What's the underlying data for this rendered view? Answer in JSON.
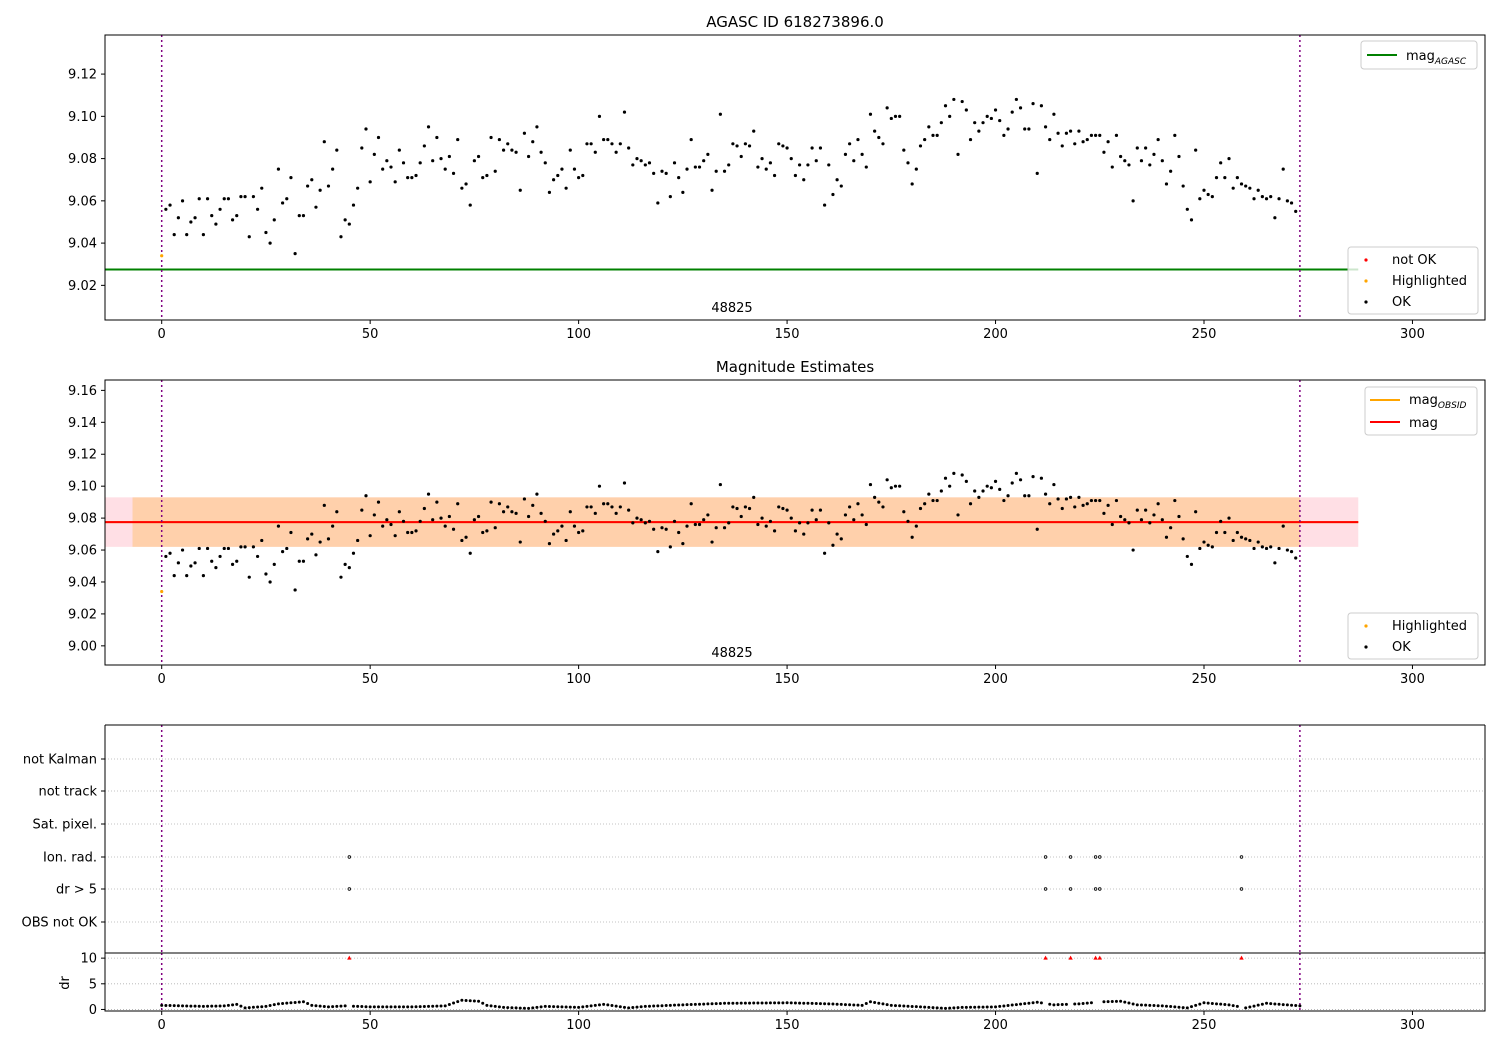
{
  "chart_data": [
    {
      "type": "scatter",
      "title": "AGASC ID 618273896.0",
      "xlim": [
        -13.6,
        317.4
      ],
      "ylim": [
        9.0036,
        9.1385
      ],
      "xticks": [
        0,
        50,
        100,
        150,
        200,
        250,
        300
      ],
      "yticks": [
        9.02,
        9.04,
        9.06,
        9.08,
        9.1,
        9.12
      ],
      "obsid_label": "48825",
      "vlines": [
        0,
        273
      ],
      "hlines": [
        {
          "name": "mag_AGASC",
          "y": 9.0275,
          "x_range": [
            -13.6,
            287
          ],
          "color": "#008000"
        }
      ],
      "legend_top": [
        {
          "label": "mag",
          "sub": "AGASC",
          "color": "#008000",
          "kind": "line"
        }
      ],
      "legend_bottom": [
        {
          "label": "not OK",
          "color": "#ff0000",
          "kind": "dot"
        },
        {
          "label": "Highlighted",
          "color": "#ffa500",
          "kind": "dot"
        },
        {
          "label": "OK",
          "color": "#000000",
          "kind": "dot"
        }
      ],
      "highlighted_points": [
        {
          "x": 0,
          "y": 9.034
        }
      ],
      "series": "shared_mag_series"
    },
    {
      "type": "scatter",
      "title": "Magnitude Estimates",
      "xlim": [
        -13.6,
        317.4
      ],
      "ylim": [
        8.988,
        9.1665
      ],
      "xticks": [
        0,
        50,
        100,
        150,
        200,
        250,
        300
      ],
      "yticks": [
        9.0,
        9.02,
        9.04,
        9.06,
        9.08,
        9.1,
        9.12,
        9.14,
        9.16
      ],
      "obsid_label": "48825",
      "vlines": [
        0,
        273
      ],
      "hlines": [
        {
          "name": "mag_OBSID",
          "y": 9.0775,
          "x_range": [
            -13.6,
            287
          ],
          "color": "#ffa500"
        },
        {
          "name": "mag",
          "y": 9.0775,
          "x_range": [
            -13.6,
            287
          ],
          "color": "#ff0000"
        }
      ],
      "bands": [
        {
          "y": [
            9.062,
            9.093
          ],
          "x_range": [
            -13.6,
            287
          ],
          "color": "#ffc0cb",
          "opacity": 0.5
        },
        {
          "y": [
            9.062,
            9.093
          ],
          "x_range": [
            -7,
            273
          ],
          "color": "#ffa500",
          "opacity": 0.25
        }
      ],
      "legend_top": [
        {
          "label": "mag",
          "sub": "OBSID",
          "color": "#ffa500",
          "kind": "line"
        },
        {
          "label": "mag",
          "sub": "",
          "color": "#ff0000",
          "kind": "line"
        }
      ],
      "legend_bottom": [
        {
          "label": "Highlighted",
          "color": "#ffa500",
          "kind": "dot"
        },
        {
          "label": "OK",
          "color": "#000000",
          "kind": "dot"
        }
      ],
      "highlighted_points": [
        {
          "x": 0,
          "y": 9.034
        }
      ],
      "series": "shared_mag_series"
    },
    {
      "type": "scatter",
      "title": "",
      "categories": [
        "not Kalman",
        "not track",
        "Sat. pixel.",
        "Ion. rad.",
        "dr > 5",
        "OBS not OK"
      ],
      "flag_points": {
        "Ion. rad.": [
          45,
          212,
          218,
          224,
          225,
          259
        ],
        "dr > 5": [
          45,
          212,
          218,
          224,
          225,
          259
        ]
      },
      "vlines": [
        0,
        273
      ]
    },
    {
      "type": "scatter",
      "ylabel": "dr",
      "xlim": [
        -13.6,
        317.4
      ],
      "ylim": [
        -0.3,
        11
      ],
      "yticks": [
        0,
        5,
        10
      ],
      "xticks": [
        0,
        50,
        100,
        150,
        200,
        250,
        300
      ],
      "vlines": [
        0,
        273
      ],
      "outliers_at_10": [
        45,
        212,
        218,
        224,
        225,
        259
      ],
      "dr_anchors": [
        [
          0,
          0.8
        ],
        [
          5,
          0.7
        ],
        [
          10,
          0.6
        ],
        [
          15,
          0.7
        ],
        [
          18,
          1.0
        ],
        [
          20,
          0.3
        ],
        [
          25,
          0.6
        ],
        [
          28,
          1.1
        ],
        [
          34,
          1.5
        ],
        [
          36,
          0.8
        ],
        [
          40,
          0.5
        ],
        [
          44,
          0.7
        ],
        [
          50,
          0.5
        ],
        [
          60,
          0.5
        ],
        [
          68,
          0.7
        ],
        [
          72,
          1.8
        ],
        [
          76,
          1.6
        ],
        [
          78,
          0.8
        ],
        [
          82,
          0.4
        ],
        [
          88,
          0.2
        ],
        [
          92,
          0.6
        ],
        [
          100,
          0.4
        ],
        [
          106,
          1.0
        ],
        [
          112,
          0.3
        ],
        [
          116,
          0.6
        ],
        [
          125,
          0.9
        ],
        [
          135,
          1.2
        ],
        [
          150,
          1.3
        ],
        [
          160,
          1.1
        ],
        [
          168,
          0.8
        ],
        [
          170,
          1.5
        ],
        [
          175,
          0.8
        ],
        [
          182,
          0.5
        ],
        [
          188,
          0.2
        ],
        [
          192,
          0.4
        ],
        [
          200,
          0.5
        ],
        [
          210,
          1.4
        ],
        [
          214,
          0.9
        ],
        [
          220,
          1.1
        ],
        [
          226,
          1.5
        ],
        [
          230,
          1.6
        ],
        [
          234,
          0.9
        ],
        [
          240,
          0.7
        ],
        [
          246,
          0.3
        ],
        [
          250,
          1.3
        ],
        [
          256,
          0.9
        ],
        [
          260,
          0.3
        ],
        [
          265,
          1.2
        ],
        [
          273,
          0.7
        ]
      ]
    }
  ],
  "mag_series": {
    "x_start": 0,
    "x_end": 273,
    "ok_points": [
      [
        1,
        9.056
      ],
      [
        2,
        9.058
      ],
      [
        3,
        9.044
      ],
      [
        4,
        9.052
      ],
      [
        5,
        9.06
      ],
      [
        6,
        9.044
      ],
      [
        7,
        9.05
      ],
      [
        8,
        9.052
      ],
      [
        9,
        9.061
      ],
      [
        10,
        9.044
      ],
      [
        11,
        9.061
      ],
      [
        12,
        9.053
      ],
      [
        13,
        9.049
      ],
      [
        14,
        9.056
      ],
      [
        15,
        9.061
      ],
      [
        16,
        9.061
      ],
      [
        17,
        9.051
      ],
      [
        18,
        9.053
      ],
      [
        19,
        9.062
      ],
      [
        20,
        9.062
      ],
      [
        21,
        9.043
      ],
      [
        22,
        9.062
      ],
      [
        23,
        9.056
      ],
      [
        24,
        9.066
      ],
      [
        25,
        9.045
      ],
      [
        26,
        9.04
      ],
      [
        27,
        9.051
      ],
      [
        28,
        9.075
      ],
      [
        29,
        9.059
      ],
      [
        30,
        9.061
      ],
      [
        31,
        9.071
      ],
      [
        32,
        9.035
      ],
      [
        33,
        9.053
      ],
      [
        34,
        9.053
      ],
      [
        35,
        9.067
      ],
      [
        36,
        9.07
      ],
      [
        37,
        9.057
      ],
      [
        38,
        9.065
      ],
      [
        39,
        9.088
      ],
      [
        40,
        9.067
      ],
      [
        41,
        9.075
      ],
      [
        42,
        9.084
      ],
      [
        43,
        9.043
      ],
      [
        44,
        9.051
      ],
      [
        45,
        9.049
      ],
      [
        46,
        9.058
      ],
      [
        47,
        9.066
      ],
      [
        48,
        9.085
      ],
      [
        49,
        9.094
      ],
      [
        50,
        9.069
      ],
      [
        51,
        9.082
      ],
      [
        52,
        9.09
      ],
      [
        53,
        9.075
      ],
      [
        54,
        9.079
      ],
      [
        55,
        9.076
      ],
      [
        56,
        9.069
      ],
      [
        57,
        9.084
      ],
      [
        58,
        9.078
      ],
      [
        59,
        9.071
      ],
      [
        60,
        9.071
      ],
      [
        61,
        9.072
      ],
      [
        62,
        9.078
      ],
      [
        63,
        9.086
      ],
      [
        64,
        9.095
      ],
      [
        65,
        9.079
      ],
      [
        66,
        9.09
      ],
      [
        67,
        9.08
      ],
      [
        68,
        9.075
      ],
      [
        69,
        9.081
      ],
      [
        70,
        9.073
      ],
      [
        71,
        9.089
      ],
      [
        72,
        9.066
      ],
      [
        73,
        9.068
      ],
      [
        74,
        9.058
      ],
      [
        75,
        9.079
      ],
      [
        76,
        9.081
      ],
      [
        77,
        9.071
      ],
      [
        78,
        9.072
      ],
      [
        79,
        9.09
      ],
      [
        80,
        9.074
      ],
      [
        81,
        9.089
      ],
      [
        82,
        9.084
      ],
      [
        83,
        9.087
      ],
      [
        84,
        9.084
      ],
      [
        85,
        9.083
      ],
      [
        86,
        9.065
      ],
      [
        87,
        9.092
      ],
      [
        88,
        9.081
      ],
      [
        89,
        9.088
      ],
      [
        90,
        9.095
      ],
      [
        91,
        9.083
      ],
      [
        92,
        9.078
      ],
      [
        93,
        9.064
      ],
      [
        94,
        9.07
      ],
      [
        95,
        9.072
      ],
      [
        96,
        9.075
      ],
      [
        97,
        9.066
      ],
      [
        98,
        9.084
      ],
      [
        99,
        9.075
      ],
      [
        100,
        9.071
      ],
      [
        101,
        9.072
      ],
      [
        102,
        9.087
      ],
      [
        103,
        9.087
      ],
      [
        104,
        9.083
      ],
      [
        105,
        9.1
      ],
      [
        106,
        9.089
      ],
      [
        107,
        9.089
      ],
      [
        108,
        9.087
      ],
      [
        109,
        9.083
      ],
      [
        110,
        9.087
      ],
      [
        111,
        9.102
      ],
      [
        112,
        9.085
      ],
      [
        113,
        9.077
      ],
      [
        114,
        9.08
      ],
      [
        115,
        9.079
      ],
      [
        116,
        9.077
      ],
      [
        117,
        9.078
      ],
      [
        118,
        9.073
      ],
      [
        119,
        9.059
      ],
      [
        120,
        9.074
      ],
      [
        121,
        9.073
      ],
      [
        122,
        9.062
      ],
      [
        123,
        9.078
      ],
      [
        124,
        9.071
      ],
      [
        125,
        9.064
      ],
      [
        126,
        9.075
      ],
      [
        127,
        9.089
      ],
      [
        128,
        9.076
      ],
      [
        129,
        9.076
      ],
      [
        130,
        9.079
      ],
      [
        131,
        9.082
      ],
      [
        132,
        9.065
      ],
      [
        133,
        9.074
      ],
      [
        134,
        9.101
      ],
      [
        135,
        9.074
      ],
      [
        136,
        9.077
      ],
      [
        137,
        9.087
      ],
      [
        138,
        9.086
      ],
      [
        139,
        9.081
      ],
      [
        140,
        9.087
      ],
      [
        141,
        9.086
      ],
      [
        142,
        9.093
      ],
      [
        143,
        9.076
      ],
      [
        144,
        9.08
      ],
      [
        145,
        9.075
      ],
      [
        146,
        9.078
      ],
      [
        147,
        9.072
      ],
      [
        148,
        9.087
      ],
      [
        149,
        9.086
      ],
      [
        150,
        9.085
      ],
      [
        151,
        9.08
      ],
      [
        152,
        9.072
      ],
      [
        153,
        9.077
      ],
      [
        154,
        9.07
      ],
      [
        155,
        9.077
      ],
      [
        156,
        9.085
      ],
      [
        157,
        9.079
      ],
      [
        158,
        9.085
      ],
      [
        159,
        9.058
      ],
      [
        160,
        9.077
      ],
      [
        161,
        9.063
      ],
      [
        162,
        9.07
      ],
      [
        163,
        9.067
      ],
      [
        164,
        9.082
      ],
      [
        165,
        9.087
      ],
      [
        166,
        9.079
      ],
      [
        167,
        9.089
      ],
      [
        168,
        9.082
      ],
      [
        169,
        9.076
      ],
      [
        170,
        9.101
      ],
      [
        171,
        9.093
      ],
      [
        172,
        9.09
      ],
      [
        173,
        9.087
      ],
      [
        174,
        9.104
      ],
      [
        175,
        9.099
      ],
      [
        176,
        9.1
      ],
      [
        177,
        9.1
      ],
      [
        178,
        9.084
      ],
      [
        179,
        9.078
      ],
      [
        180,
        9.068
      ],
      [
        181,
        9.075
      ],
      [
        182,
        9.086
      ],
      [
        183,
        9.089
      ],
      [
        184,
        9.095
      ],
      [
        185,
        9.091
      ],
      [
        186,
        9.091
      ],
      [
        187,
        9.097
      ],
      [
        188,
        9.105
      ],
      [
        189,
        9.1
      ],
      [
        190,
        9.108
      ],
      [
        191,
        9.082
      ],
      [
        192,
        9.107
      ],
      [
        193,
        9.103
      ],
      [
        194,
        9.089
      ],
      [
        195,
        9.097
      ],
      [
        196,
        9.093
      ],
      [
        197,
        9.097
      ],
      [
        198,
        9.1
      ],
      [
        199,
        9.099
      ],
      [
        200,
        9.103
      ],
      [
        201,
        9.098
      ],
      [
        202,
        9.091
      ],
      [
        203,
        9.094
      ],
      [
        204,
        9.102
      ],
      [
        205,
        9.108
      ],
      [
        206,
        9.104
      ],
      [
        207,
        9.094
      ],
      [
        208,
        9.094
      ],
      [
        209,
        9.106
      ],
      [
        210,
        9.073
      ],
      [
        211,
        9.105
      ],
      [
        212,
        9.095
      ],
      [
        213,
        9.089
      ],
      [
        214,
        9.101
      ],
      [
        215,
        9.092
      ],
      [
        216,
        9.086
      ],
      [
        217,
        9.092
      ],
      [
        218,
        9.093
      ],
      [
        219,
        9.087
      ],
      [
        220,
        9.093
      ],
      [
        221,
        9.088
      ],
      [
        222,
        9.089
      ],
      [
        223,
        9.091
      ],
      [
        224,
        9.091
      ],
      [
        225,
        9.091
      ],
      [
        226,
        9.083
      ],
      [
        227,
        9.088
      ],
      [
        228,
        9.076
      ],
      [
        229,
        9.091
      ],
      [
        230,
        9.081
      ],
      [
        231,
        9.079
      ],
      [
        232,
        9.077
      ],
      [
        233,
        9.06
      ],
      [
        234,
        9.085
      ],
      [
        235,
        9.079
      ],
      [
        236,
        9.085
      ],
      [
        237,
        9.077
      ],
      [
        238,
        9.082
      ],
      [
        239,
        9.089
      ],
      [
        240,
        9.079
      ],
      [
        241,
        9.068
      ],
      [
        242,
        9.074
      ],
      [
        243,
        9.091
      ],
      [
        244,
        9.081
      ],
      [
        245,
        9.067
      ],
      [
        246,
        9.056
      ],
      [
        247,
        9.051
      ],
      [
        248,
        9.084
      ],
      [
        249,
        9.061
      ],
      [
        250,
        9.065
      ],
      [
        251,
        9.063
      ],
      [
        252,
        9.062
      ],
      [
        253,
        9.071
      ],
      [
        254,
        9.078
      ],
      [
        255,
        9.071
      ],
      [
        256,
        9.08
      ],
      [
        257,
        9.066
      ],
      [
        258,
        9.071
      ],
      [
        259,
        9.068
      ],
      [
        260,
        9.067
      ],
      [
        261,
        9.066
      ],
      [
        262,
        9.061
      ],
      [
        263,
        9.065
      ],
      [
        264,
        9.062
      ],
      [
        265,
        9.061
      ],
      [
        266,
        9.062
      ],
      [
        267,
        9.052
      ],
      [
        268,
        9.061
      ],
      [
        269,
        9.075
      ],
      [
        270,
        9.06
      ],
      [
        271,
        9.059
      ],
      [
        272,
        9.055
      ]
    ]
  }
}
